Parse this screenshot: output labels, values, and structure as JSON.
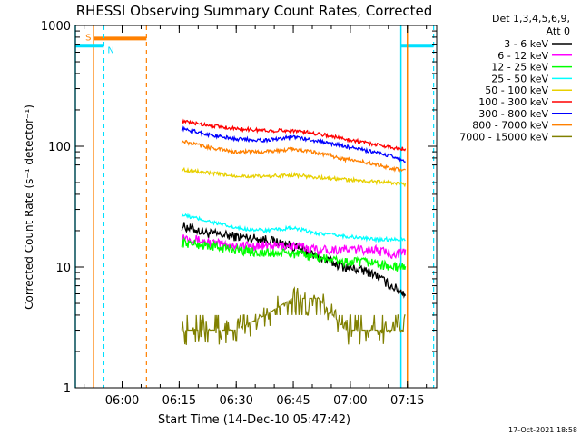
{
  "chart_data": {
    "type": "line",
    "title": "RHESSI Observing Summary Count Rates, Corrected",
    "xlabel": "Start Time (14-Dec-10 05:47:42)",
    "ylabel": "Corrected Count Rate (s⁻¹ detector⁻¹)",
    "y_scale": "log",
    "ylim": [
      1,
      1000
    ],
    "xlim_minutes_after_05_47_42": [
      0,
      95
    ],
    "x_ticks": [
      {
        "label": "06:00",
        "t": 12.3
      },
      {
        "label": "06:15",
        "t": 27.3
      },
      {
        "label": "06:30",
        "t": 42.3
      },
      {
        "label": "06:45",
        "t": 57.3
      },
      {
        "label": "07:00",
        "t": 72.3
      },
      {
        "label": "07:15",
        "t": 87.3
      }
    ],
    "y_ticks": [
      {
        "label": "1",
        "v": 1
      },
      {
        "label": "10",
        "v": 10
      },
      {
        "label": "100",
        "v": 100
      },
      {
        "label": "1000",
        "v": 1000
      }
    ],
    "legend_header": "Det 1,3,4,5,6,9,",
    "legend_subheader": "Att 0",
    "legend_position": "right",
    "time_points": [
      28,
      35,
      42,
      50,
      57,
      64,
      71,
      78,
      83,
      87
    ],
    "series": [
      {
        "name": "3 - 6 keV",
        "color": "#000000",
        "values": [
          22,
          19,
          18,
          17,
          15,
          12,
          10,
          9,
          7,
          6
        ]
      },
      {
        "name": "6 - 12 keV",
        "color": "#ff00ff",
        "values": [
          18,
          16,
          15,
          15,
          15,
          14,
          14,
          14,
          13,
          13
        ]
      },
      {
        "name": "12 - 25 keV",
        "color": "#00ff00",
        "values": [
          16,
          15,
          14,
          13,
          13,
          12,
          11,
          11,
          10,
          10
        ]
      },
      {
        "name": "25 - 50 keV",
        "color": "#00ffff",
        "values": [
          27,
          24,
          21,
          20,
          21,
          19,
          18,
          17,
          17,
          17
        ]
      },
      {
        "name": "50 - 100 keV",
        "color": "#e8d000",
        "values": [
          64,
          60,
          57,
          56,
          58,
          55,
          53,
          51,
          50,
          48
        ]
      },
      {
        "name": "100 - 300 keV",
        "color": "#ff0000",
        "values": [
          160,
          150,
          140,
          135,
          135,
          127,
          115,
          105,
          98,
          95
        ]
      },
      {
        "name": "300 - 800 keV",
        "color": "#0000ff",
        "values": [
          140,
          125,
          115,
          112,
          120,
          110,
          100,
          90,
          83,
          76
        ]
      },
      {
        "name": "800 - 7000 keV",
        "color": "#ff8000",
        "values": [
          110,
          98,
          90,
          90,
          95,
          88,
          78,
          72,
          66,
          62
        ]
      },
      {
        "name": "7000 - 15000 keV",
        "color": "#808000",
        "values": [
          3.0,
          3.0,
          3.0,
          4.0,
          5.5,
          5.5,
          3.0,
          3.0,
          3.0,
          3.0
        ]
      }
    ],
    "markers": [
      {
        "label": "S",
        "color": "#ff8000",
        "bar_t0": 4.8,
        "bar_t1": 18.7,
        "bar_v": 780,
        "solid_t": 4.8,
        "dashed_t": 18.7
      },
      {
        "label": "N",
        "color": "#00e0ff",
        "bar_t0": 0,
        "bar_t1": 7.5,
        "bar_v": 680,
        "solid_t": 0,
        "dashed_t": 7.5
      },
      {
        "label": "",
        "color": "#00e0ff",
        "bar_t0": 85.6,
        "bar_t1": 94.2,
        "bar_v": 680,
        "solid_t": 85.6,
        "dashed_t": 94.2
      },
      {
        "label": "",
        "color": "#ff8000",
        "bar_t0": 87.3,
        "bar_t1": 87.3,
        "bar_v": 1,
        "solid_t": 87.3,
        "dashed_t": 87.3
      }
    ],
    "timestamp": "17-Oct-2021 18:58"
  }
}
